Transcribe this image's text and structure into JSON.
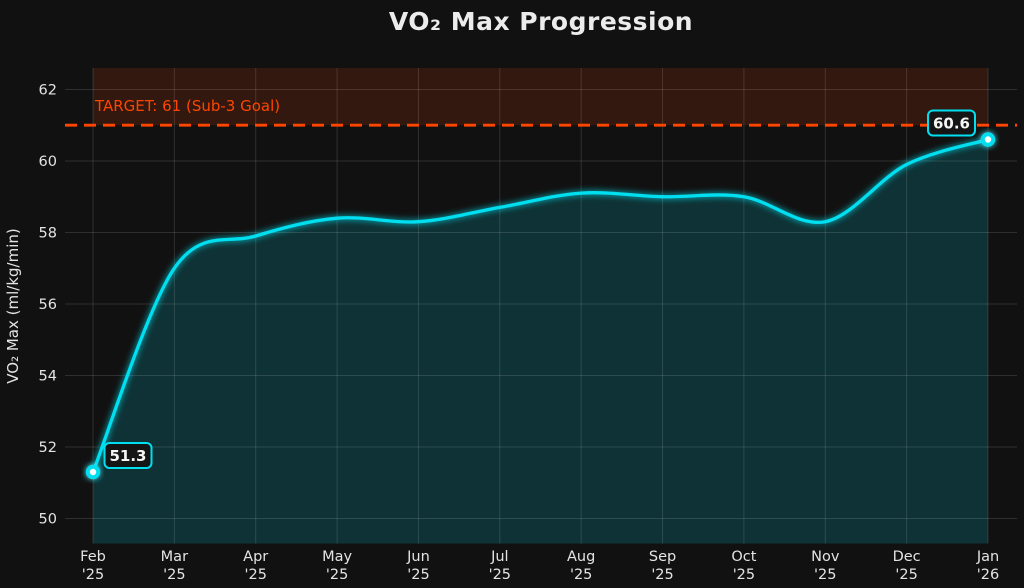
{
  "chart_data": {
    "type": "area",
    "title": "VO₂ Max Progression",
    "ylabel": "VO₂ Max (ml/kg/min)",
    "xlabel": "",
    "categories": [
      "Feb '25",
      "Mar '25",
      "Apr '25",
      "May '25",
      "Jun '25",
      "Jul '25",
      "Aug '25",
      "Sep '25",
      "Oct '25",
      "Nov '25",
      "Dec '25",
      "Jan '26"
    ],
    "values": [
      51.3,
      57.0,
      57.9,
      58.4,
      58.3,
      58.7,
      59.1,
      59.0,
      59.0,
      58.3,
      59.9,
      60.6
    ],
    "y_ticks": [
      50,
      52,
      54,
      56,
      58,
      60,
      62
    ],
    "ylim": [
      49.3,
      62.6
    ],
    "grid": true,
    "legend": "none",
    "target": {
      "value": 61,
      "label": "TARGET: 61 (Sub-3 Goal)"
    },
    "annotations": [
      {
        "text": "51.3",
        "point": "first",
        "side": "right"
      },
      {
        "text": "60.6",
        "point": "last",
        "side": "left"
      }
    ],
    "colors": {
      "background": "#111111",
      "line": "#00dff0",
      "fill": "rgba(0,223,240,0.16)",
      "target": "#ff4500",
      "target_band": "rgba(255,69,0,0.14)",
      "grid": "rgba(255,255,255,0.13)",
      "text": "#e4e4e4",
      "title": "#ececec",
      "annotation_bg": "#151515",
      "marker_core": "#ffffff"
    }
  }
}
